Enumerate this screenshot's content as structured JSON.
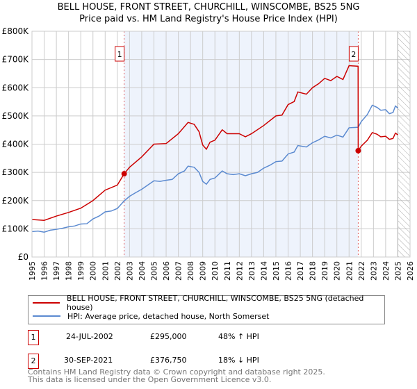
{
  "chart_data": {
    "type": "line",
    "title": "BELL HOUSE, FRONT STREET, CHURCHILL, WINSCOMBE, BS25 5NG",
    "subtitle": "Price paid vs. HM Land Registry's House Price Index (HPI)",
    "xlim": [
      1995,
      2026
    ],
    "ylim": [
      0,
      800000
    ],
    "x_ticks": [
      "1995",
      "1996",
      "1997",
      "1998",
      "1999",
      "2000",
      "2001",
      "2002",
      "2003",
      "2004",
      "2005",
      "2006",
      "2007",
      "2008",
      "2009",
      "2010",
      "2011",
      "2012",
      "2013",
      "2014",
      "2015",
      "2016",
      "2017",
      "2018",
      "2019",
      "2020",
      "2021",
      "2022",
      "2023",
      "2024",
      "2025",
      "2026"
    ],
    "y_ticks": [
      {
        "v": 0,
        "label": "£0"
      },
      {
        "v": 100000,
        "label": "£100K"
      },
      {
        "v": 200000,
        "label": "£200K"
      },
      {
        "v": 300000,
        "label": "£300K"
      },
      {
        "v": 400000,
        "label": "£400K"
      },
      {
        "v": 500000,
        "label": "£500K"
      },
      {
        "v": 600000,
        "label": "£600K"
      },
      {
        "v": 700000,
        "label": "£700K"
      },
      {
        "v": 800000,
        "label": "£800K"
      }
    ],
    "grid": true,
    "shaded_range": [
      2002.56,
      2021.75
    ],
    "forecast_hatch_from": 2025.0,
    "series": [
      {
        "name": "BELL HOUSE, FRONT STREET, CHURCHILL, WINSCOMBE, BS25 5NG (detached house)",
        "color": "#cc0000",
        "x": [
          1995,
          1996,
          1997,
          1998,
          1999,
          2000,
          2001,
          2002,
          2002.56,
          2003,
          2004,
          2005,
          2006,
          2007,
          2007.8,
          2008.3,
          2008.7,
          2009,
          2009.3,
          2009.6,
          2010,
          2010.6,
          2011,
          2012,
          2012.5,
          2013,
          2014,
          2015,
          2015.5,
          2016,
          2016.5,
          2016.8,
          2017.5,
          2018,
          2018.5,
          2019,
          2019.5,
          2020,
          2020.5,
          2021,
          2021.74,
          2021.75,
          2022,
          2022.5,
          2022.9,
          2023.3,
          2023.6,
          2024,
          2024.3,
          2024.6,
          2024.8,
          2025
        ],
        "y": [
          133,
          130,
          145,
          158,
          173,
          200,
          237,
          255,
          295,
          318,
          355,
          400,
          402,
          437,
          477,
          470,
          444,
          397,
          382,
          407,
          414,
          451,
          437,
          437,
          426,
          437,
          466,
          500,
          503,
          540,
          551,
          585,
          577,
          600,
          614,
          633,
          625,
          640,
          629,
          678,
          676,
          376.75,
          393,
          414,
          441,
          435,
          426,
          428,
          417,
          420,
          439,
          433
        ]
      },
      {
        "name": "HPI: Average price, detached house, North Somerset",
        "color": "#5b8ad0",
        "x": [
          1995,
          1995.5,
          1996,
          1996.5,
          1997,
          1997.5,
          1998,
          1998.5,
          1999,
          1999.5,
          2000,
          2000.5,
          2001,
          2001.5,
          2002,
          2002.56,
          2003,
          2003.5,
          2004,
          2004.5,
          2005,
          2005.5,
          2006,
          2006.5,
          2007,
          2007.5,
          2007.8,
          2008.3,
          2008.7,
          2009,
          2009.3,
          2009.6,
          2010,
          2010.6,
          2011,
          2011.5,
          2012,
          2012.5,
          2013,
          2013.5,
          2014,
          2014.5,
          2015,
          2015.5,
          2016,
          2016.5,
          2016.8,
          2017.5,
          2018,
          2018.5,
          2019,
          2019.5,
          2020,
          2020.5,
          2021,
          2021.75,
          2022,
          2022.5,
          2022.9,
          2023.3,
          2023.6,
          2024,
          2024.3,
          2024.6,
          2024.8,
          2025
        ],
        "y": [
          90,
          92,
          88,
          95,
          98,
          102,
          107,
          110,
          117,
          118,
          135,
          145,
          160,
          163,
          172,
          199,
          215,
          228,
          240,
          255,
          270,
          268,
          272,
          275,
          295,
          305,
          322,
          318,
          300,
          268,
          258,
          275,
          280,
          305,
          295,
          292,
          295,
          288,
          295,
          300,
          315,
          325,
          338,
          340,
          365,
          372,
          395,
          390,
          405,
          415,
          428,
          422,
          432,
          425,
          458,
          460,
          480,
          505,
          538,
          530,
          520,
          522,
          508,
          512,
          535,
          528
        ]
      }
    ],
    "y_unit": "thousands GBP",
    "annotations": [
      {
        "label": "1",
        "x": 2002.56,
        "y": 295000
      },
      {
        "label": "2",
        "x": 2021.75,
        "y": 376750
      }
    ]
  },
  "legend": {
    "red": "BELL HOUSE, FRONT STREET, CHURCHILL, WINSCOMBE, BS25 5NG (detached house)",
    "blue": "HPI: Average price, detached house, North Somerset"
  },
  "sales": [
    {
      "num": "1",
      "date": "24-JUL-2002",
      "price": "£295,000",
      "hpi": "48% ↑ HPI"
    },
    {
      "num": "2",
      "date": "30-SEP-2021",
      "price": "£376,750",
      "hpi": "18% ↓ HPI"
    }
  ],
  "footer": {
    "line1": "Contains HM Land Registry data © Crown copyright and database right 2025.",
    "line2": "This data is licensed under the Open Government Licence v3.0."
  }
}
